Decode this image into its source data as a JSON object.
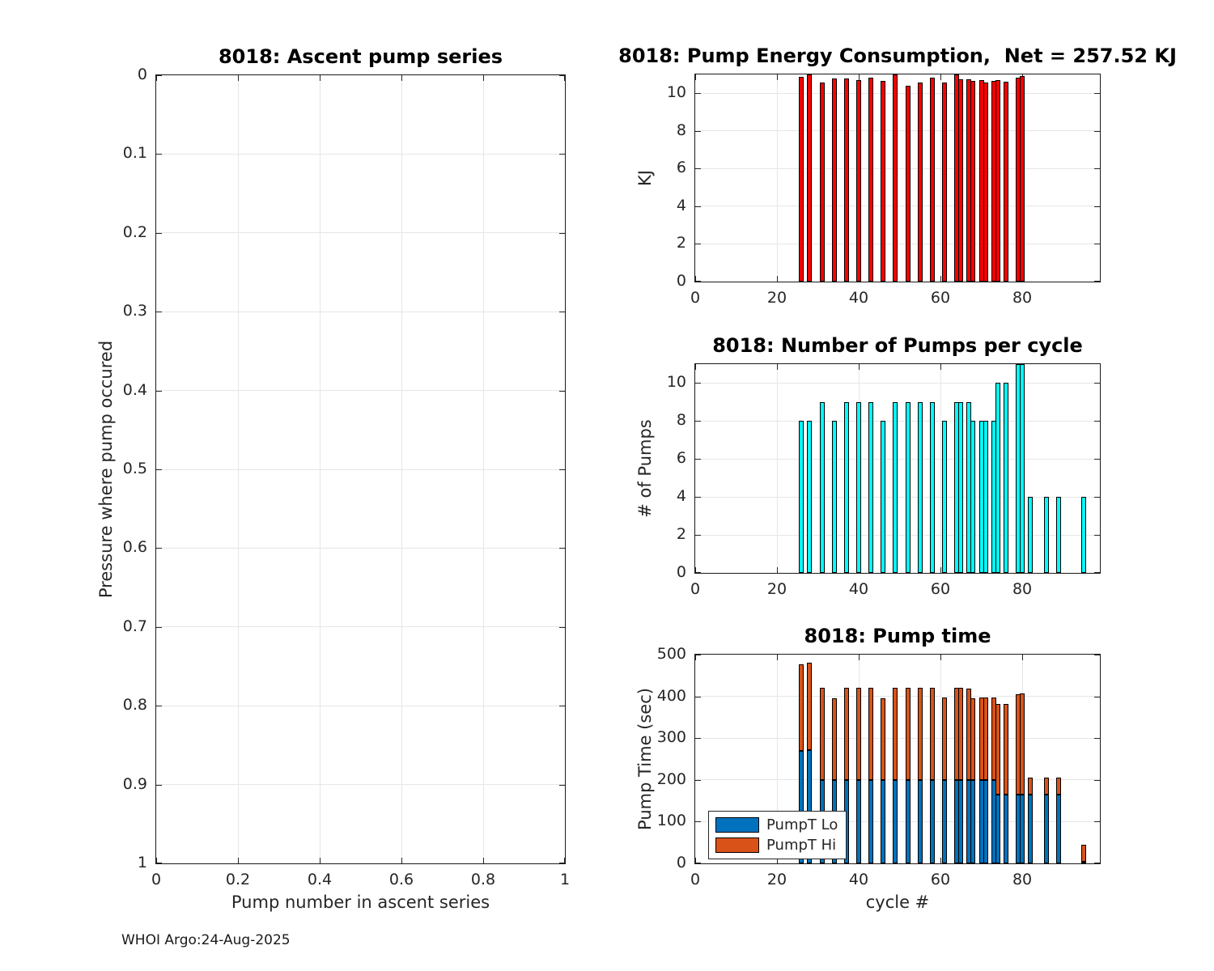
{
  "figure": {
    "footer": "WHOI Argo:24-Aug-2025"
  },
  "colors": {
    "energy_bar_red": "#FF0000",
    "pumps_bar_cyan": "#00FFFF",
    "pumpt_lo_blue": "#0072BD",
    "pumpt_hi_orange": "#D95319",
    "grid": "#E6E6E6",
    "axis_border": "#1A1A1A",
    "tick_text": "#262626"
  },
  "chart_data": [
    {
      "name": "ascent-pump-series",
      "type": "scatter",
      "title": "8018: Ascent pump series",
      "xlabel": "Pump number in ascent series",
      "ylabel": "Pressure where pump occured",
      "xlim": [
        0,
        1
      ],
      "ylim": [
        0,
        1
      ],
      "y_reversed": true,
      "grid": true,
      "xtick_vals": [
        0,
        0.2,
        0.4,
        0.6,
        0.8,
        1
      ],
      "xtick_labels": [
        "0",
        "0.2",
        "0.4",
        "0.6",
        "0.8",
        "1"
      ],
      "ytick_vals": [
        0,
        0.1,
        0.2,
        0.3,
        0.4,
        0.5,
        0.6,
        0.7,
        0.8,
        0.9,
        1
      ],
      "ytick_labels": [
        "0",
        "0.1",
        "0.2",
        "0.3",
        "0.4",
        "0.5",
        "0.6",
        "0.7",
        "0.8",
        "0.9",
        "1"
      ],
      "points": []
    },
    {
      "name": "pump-energy-consumption",
      "type": "bar",
      "title": "8018: Pump Energy Consumption,  Net = 257.52 KJ",
      "net_kj_label": "257.52",
      "xlabel": "",
      "ylabel": "KJ",
      "xlim": [
        0,
        99
      ],
      "ylim": [
        0,
        11
      ],
      "grid": true,
      "xtick_vals": [
        0,
        20,
        40,
        60,
        80
      ],
      "xtick_labels": [
        "0",
        "20",
        "40",
        "60",
        "80"
      ],
      "ytick_vals": [
        0,
        2,
        4,
        6,
        8,
        10
      ],
      "ytick_labels": [
        "0",
        "2",
        "4",
        "6",
        "8",
        "10"
      ],
      "bar_color_key": "energy_bar_red",
      "x": [
        26,
        28,
        31,
        34,
        37,
        40,
        43,
        46,
        49,
        52,
        55,
        58,
        61,
        64,
        65,
        67,
        68,
        70,
        71,
        73,
        74,
        76,
        79,
        80
      ],
      "values": [
        10.88,
        11.0,
        10.58,
        10.78,
        10.78,
        10.72,
        10.82,
        10.65,
        10.98,
        10.38,
        10.58,
        10.82,
        10.58,
        11.0,
        10.76,
        10.75,
        10.64,
        10.7,
        10.55,
        10.64,
        10.71,
        10.6,
        10.81,
        10.91
      ]
    },
    {
      "name": "number-of-pumps-per-cycle",
      "type": "bar",
      "title": "8018: Number of Pumps per cycle",
      "xlabel": "",
      "ylabel": "# of Pumps",
      "xlim": [
        0,
        99
      ],
      "ylim": [
        0,
        11
      ],
      "grid": true,
      "xtick_vals": [
        0,
        20,
        40,
        60,
        80
      ],
      "xtick_labels": [
        "0",
        "20",
        "40",
        "60",
        "80"
      ],
      "ytick_vals": [
        0,
        2,
        4,
        6,
        8,
        10
      ],
      "ytick_labels": [
        "0",
        "2",
        "4",
        "6",
        "8",
        "10"
      ],
      "bar_color_key": "pumps_bar_cyan",
      "x": [
        26,
        28,
        31,
        34,
        37,
        40,
        43,
        46,
        49,
        52,
        55,
        58,
        61,
        64,
        65,
        67,
        68,
        70,
        71,
        73,
        74,
        76,
        79,
        80,
        82,
        86,
        89,
        95
      ],
      "values": [
        8,
        8,
        9,
        8,
        9,
        9,
        9,
        8,
        9,
        9,
        9,
        9,
        8,
        9,
        9,
        9,
        8,
        8,
        8,
        8,
        10,
        10,
        11,
        11,
        4,
        4,
        4,
        4
      ]
    },
    {
      "name": "pump-time",
      "type": "stacked-bar",
      "title": "8018: Pump time",
      "xlabel": "cycle #",
      "ylabel": "Pump Time (sec)",
      "xlim": [
        0,
        99
      ],
      "ylim": [
        0,
        500
      ],
      "grid": true,
      "legend_position": "southwest",
      "xtick_vals": [
        0,
        20,
        40,
        60,
        80
      ],
      "xtick_labels": [
        "0",
        "20",
        "40",
        "60",
        "80"
      ],
      "ytick_vals": [
        0,
        100,
        200,
        300,
        400,
        500
      ],
      "ytick_labels": [
        "0",
        "100",
        "200",
        "300",
        "400",
        "500"
      ],
      "x": [
        26,
        28,
        31,
        34,
        37,
        40,
        43,
        46,
        49,
        52,
        55,
        58,
        61,
        64,
        65,
        67,
        68,
        70,
        71,
        73,
        74,
        76,
        79,
        80,
        82,
        86,
        89,
        95
      ],
      "series": [
        {
          "name": "PumpT Lo",
          "color_key": "pumpt_lo_blue",
          "values": [
            269,
            271,
            200,
            200,
            200,
            200,
            200,
            200,
            200,
            200,
            200,
            200,
            200,
            200,
            200,
            200,
            200,
            200,
            200,
            200,
            164,
            164,
            164,
            164,
            164,
            164,
            164,
            4
          ]
        },
        {
          "name": "PumpT Hi",
          "color_key": "pumpt_hi_orange",
          "values": [
            208,
            210,
            221,
            195,
            221,
            221,
            221,
            195,
            221,
            221,
            221,
            220,
            197,
            221,
            221,
            219,
            195,
            197,
            197,
            197,
            217,
            217,
            241,
            243,
            41,
            41,
            41,
            41
          ]
        }
      ],
      "legend": [
        "PumpT Lo",
        "PumpT Hi"
      ]
    }
  ]
}
